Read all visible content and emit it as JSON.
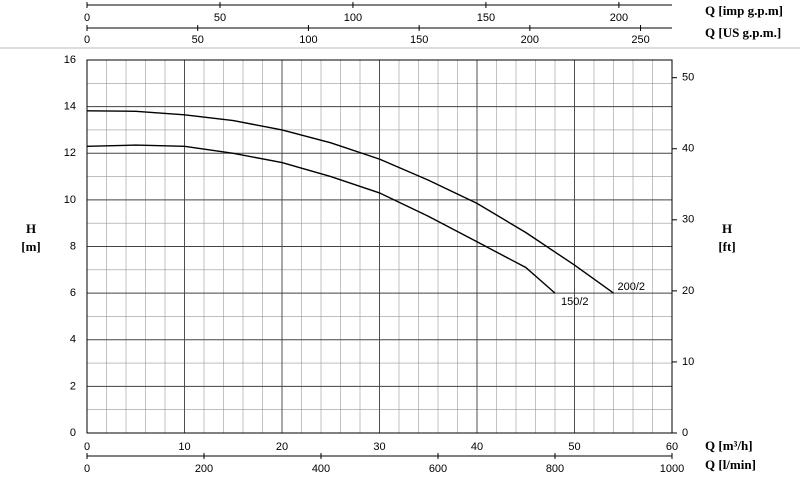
{
  "chart_data": {
    "type": "line",
    "xlim": [
      0,
      60
    ],
    "xticks": [
      0,
      10,
      20,
      30,
      40,
      50,
      60
    ],
    "x_label": "Q [m³/h]",
    "ylim": [
      0,
      16
    ],
    "yticks": [
      0,
      2,
      4,
      6,
      8,
      10,
      12,
      14,
      16
    ],
    "y_label": {
      "symbol": "H",
      "unit": "[m]"
    },
    "y2lim": [
      0,
      52.49
    ],
    "y2ticks": [
      0,
      10,
      20,
      30,
      40,
      50
    ],
    "y2_label": {
      "symbol": "H",
      "unit": "[ft]"
    },
    "extra_x_axes": [
      {
        "position": "bottom",
        "label": "Q [l/min]",
        "xlim": [
          0,
          1000
        ],
        "xticks": [
          0,
          200,
          400,
          600,
          800,
          1000
        ]
      },
      {
        "position": "top",
        "label": "Q [imp g.p.m]",
        "xlim": [
          0,
          219.97
        ],
        "xticks": [
          0,
          50,
          100,
          150,
          200
        ]
      },
      {
        "position": "top",
        "label": "Q [US g.p.m.]",
        "xlim": [
          0,
          264.2
        ],
        "xticks": [
          0,
          50,
          100,
          150,
          200,
          250
        ]
      }
    ],
    "grid": {
      "x_minor": 2,
      "y_minor": 1
    },
    "series": [
      {
        "name": "200/2",
        "color": "#000000",
        "x": [
          0,
          5,
          10,
          15,
          20,
          25,
          30,
          35,
          40,
          45,
          50,
          54
        ],
        "values": [
          13.82,
          13.8,
          13.65,
          13.4,
          13.0,
          12.45,
          11.75,
          10.85,
          9.85,
          8.6,
          7.2,
          6.0
        ]
      },
      {
        "name": "150/2",
        "color": "#000000",
        "x": [
          0,
          5,
          10,
          15,
          20,
          25,
          30,
          35,
          40,
          45,
          48
        ],
        "values": [
          12.3,
          12.35,
          12.3,
          12.0,
          11.6,
          11.0,
          10.3,
          9.3,
          8.2,
          7.1,
          6.0
        ]
      }
    ]
  }
}
